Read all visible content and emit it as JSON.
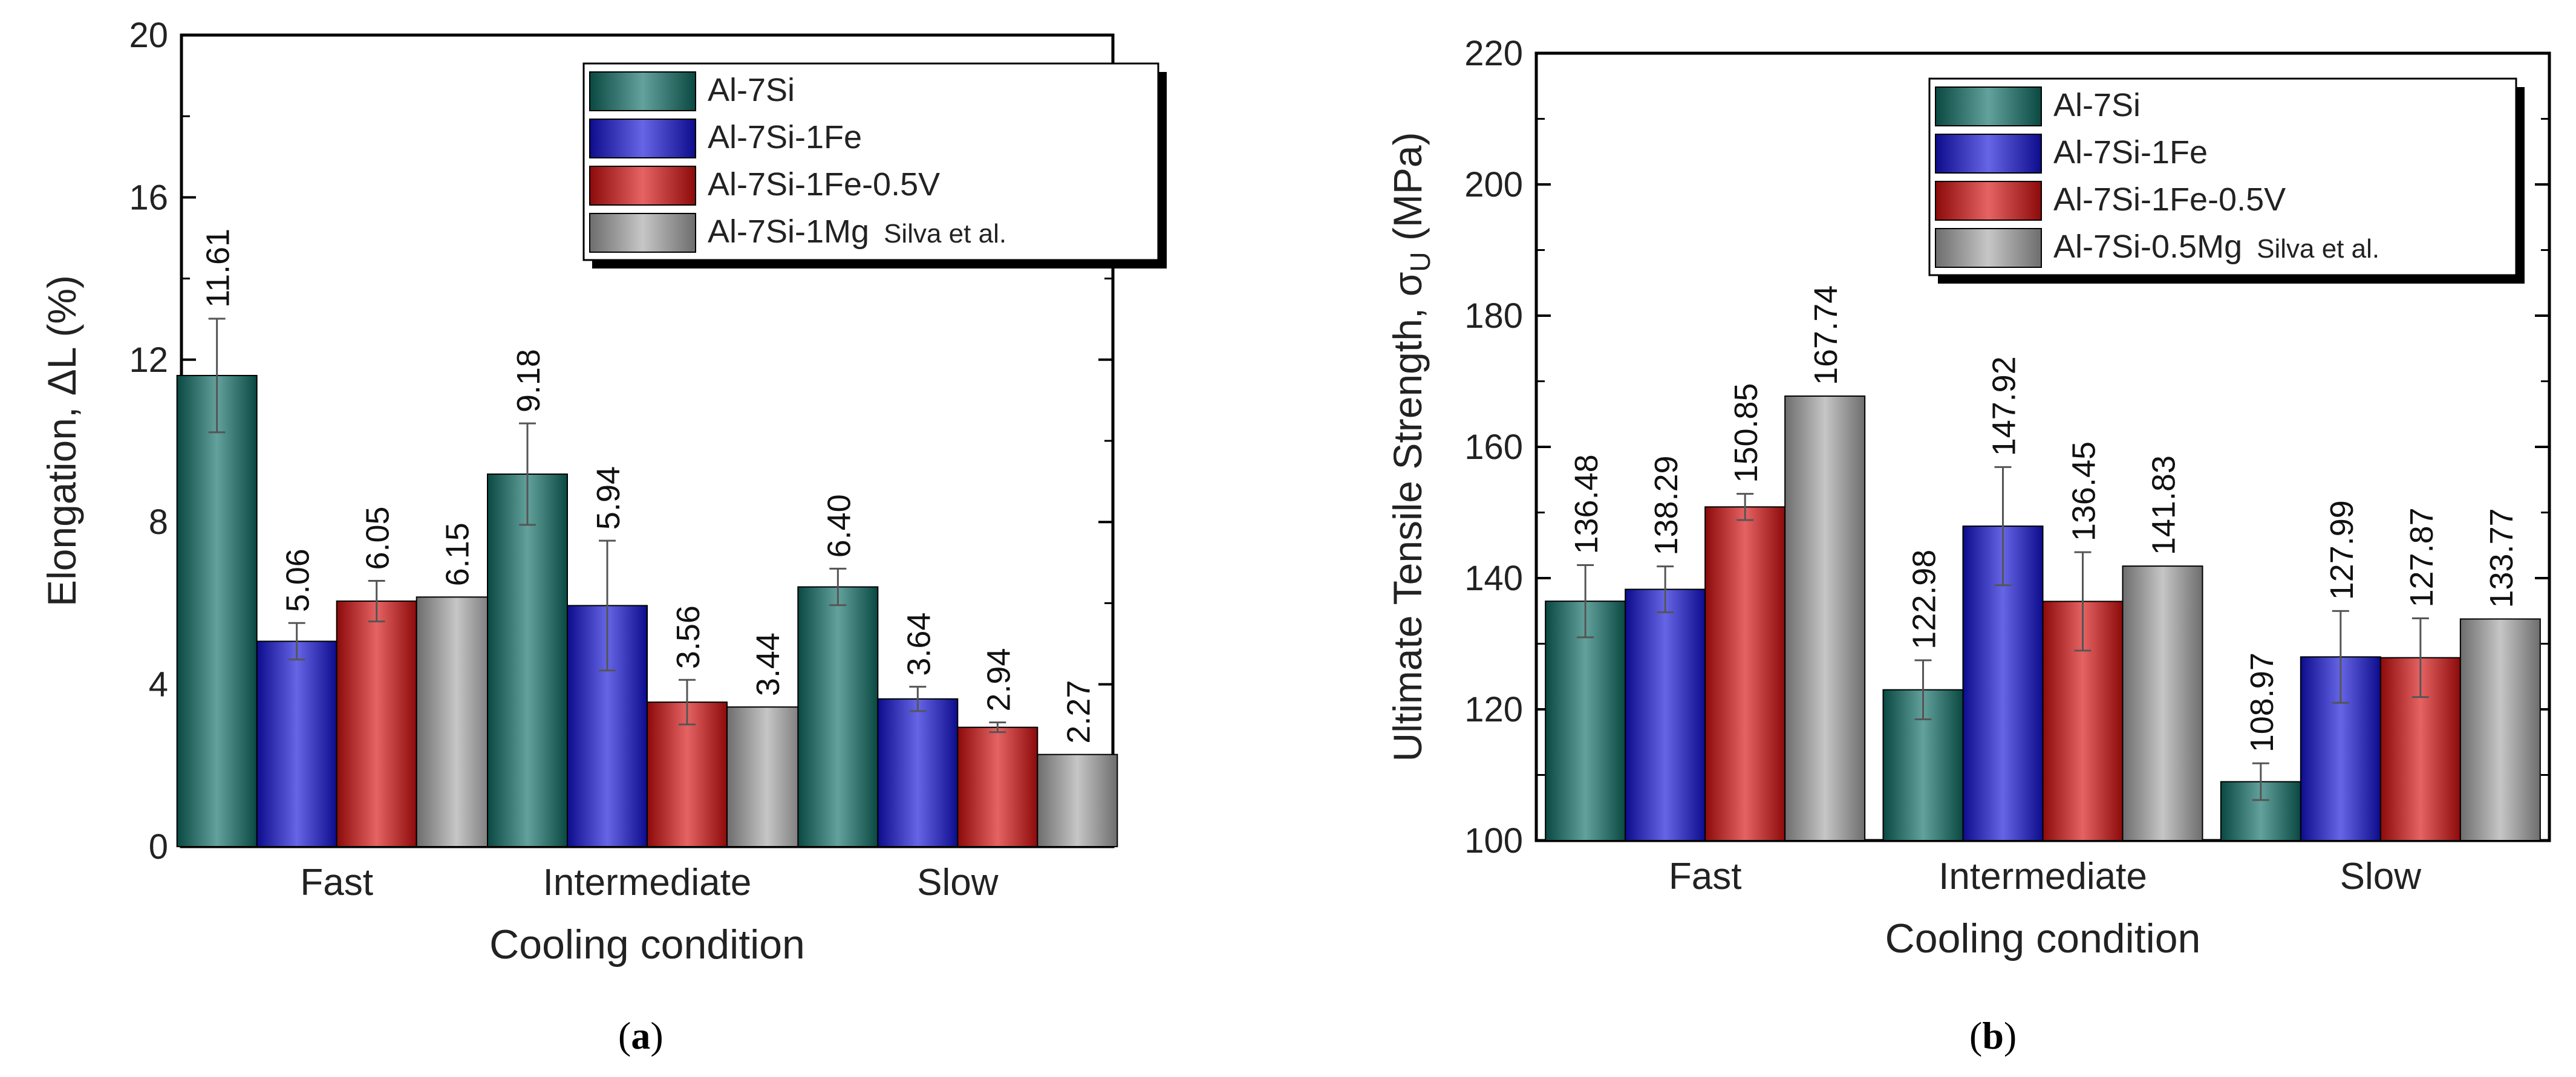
{
  "colors": {
    "Al-7Si": "#0f6e66",
    "Al-7Si-1Fe": "#1212d8",
    "Al-7Si-1Fe-0.5V": "#d80f0f",
    "Al-7Si-1Mg": "#a8a8a8"
  },
  "captions": {
    "a_open": "(",
    "a_letter": "a",
    "a_close": ")",
    "b_open": "(",
    "b_letter": "b",
    "b_close": ")"
  },
  "chart_data": [
    {
      "type": "bar",
      "panel": "a",
      "xlabel": "Cooling condition",
      "ylabel": "Elongation, ΔL (%)",
      "ylim": [
        0,
        20
      ],
      "yticks": [
        0,
        4,
        8,
        12,
        16,
        20
      ],
      "categories": [
        "Fast",
        "Intermediate",
        "Slow"
      ],
      "legend_position": "top-right",
      "series": [
        {
          "name": "Al-7Si",
          "legend_label": "Al-7Si",
          "color_key": "Al-7Si",
          "values": [
            11.61,
            9.18,
            6.4
          ],
          "labels": [
            "11.61",
            "9.18",
            "6.40"
          ],
          "errors": [
            1.4,
            1.25,
            0.45
          ]
        },
        {
          "name": "Al-7Si-1Fe",
          "legend_label": "Al-7Si-1Fe",
          "color_key": "Al-7Si-1Fe",
          "values": [
            5.06,
            5.94,
            3.64
          ],
          "labels": [
            "5.06",
            "5.94",
            "3.64"
          ],
          "errors": [
            0.45,
            1.6,
            0.3
          ]
        },
        {
          "name": "Al-7Si-1Fe-0.5V",
          "legend_label": "Al-7Si-1Fe-0.5V",
          "color_key": "Al-7Si-1Fe-0.5V",
          "values": [
            6.05,
            3.56,
            2.94
          ],
          "labels": [
            "6.05",
            "3.56",
            "2.94"
          ],
          "errors": [
            0.5,
            0.55,
            0.12
          ]
        },
        {
          "name": "Al-7Si-1Mg Silva et al.",
          "legend_label": "Al-7Si-1Mg",
          "legend_suffix": "Silva et al.",
          "color_key": "Al-7Si-1Mg",
          "values": [
            6.15,
            3.44,
            2.27
          ],
          "labels": [
            "6.15",
            "3.44",
            "2.27"
          ],
          "errors": [
            0,
            0,
            0
          ]
        }
      ]
    },
    {
      "type": "bar",
      "panel": "b",
      "xlabel": "Cooling condition",
      "ylabel_main": "Ultimate Tensile Strength, σ",
      "ylabel_sub": "U",
      "ylabel_unit": " (MPa)",
      "ylim": [
        100,
        220
      ],
      "yticks": [
        100,
        120,
        140,
        160,
        180,
        200,
        220
      ],
      "categories": [
        "Fast",
        "Intermediate",
        "Slow"
      ],
      "legend_position": "top-right",
      "series": [
        {
          "name": "Al-7Si",
          "legend_label": "Al-7Si",
          "color_key": "Al-7Si",
          "values": [
            136.48,
            122.98,
            108.97
          ],
          "labels": [
            "136.48",
            "122.98",
            "108.97"
          ],
          "errors": [
            5.5,
            4.5,
            2.8
          ]
        },
        {
          "name": "Al-7Si-1Fe",
          "legend_label": "Al-7Si-1Fe",
          "color_key": "Al-7Si-1Fe",
          "values": [
            138.29,
            147.92,
            127.99
          ],
          "labels": [
            "138.29",
            "147.92",
            "127.99"
          ],
          "errors": [
            3.5,
            9.0,
            7.0
          ]
        },
        {
          "name": "Al-7Si-1Fe-0.5V",
          "legend_label": "Al-7Si-1Fe-0.5V",
          "color_key": "Al-7Si-1Fe-0.5V",
          "values": [
            150.85,
            136.45,
            127.87
          ],
          "labels": [
            "150.85",
            "136.45",
            "127.87"
          ],
          "errors": [
            2.0,
            7.5,
            6.0
          ]
        },
        {
          "name": "Al-7Si-0.5Mg Silva et al.",
          "legend_label": "Al-7Si-0.5Mg",
          "legend_suffix": "Silva et al.",
          "color_key": "Al-7Si-1Mg",
          "values": [
            167.74,
            141.83,
            133.77
          ],
          "labels": [
            "167.74",
            "141.83",
            "133.77"
          ],
          "errors": [
            0,
            0,
            0
          ]
        }
      ]
    }
  ]
}
